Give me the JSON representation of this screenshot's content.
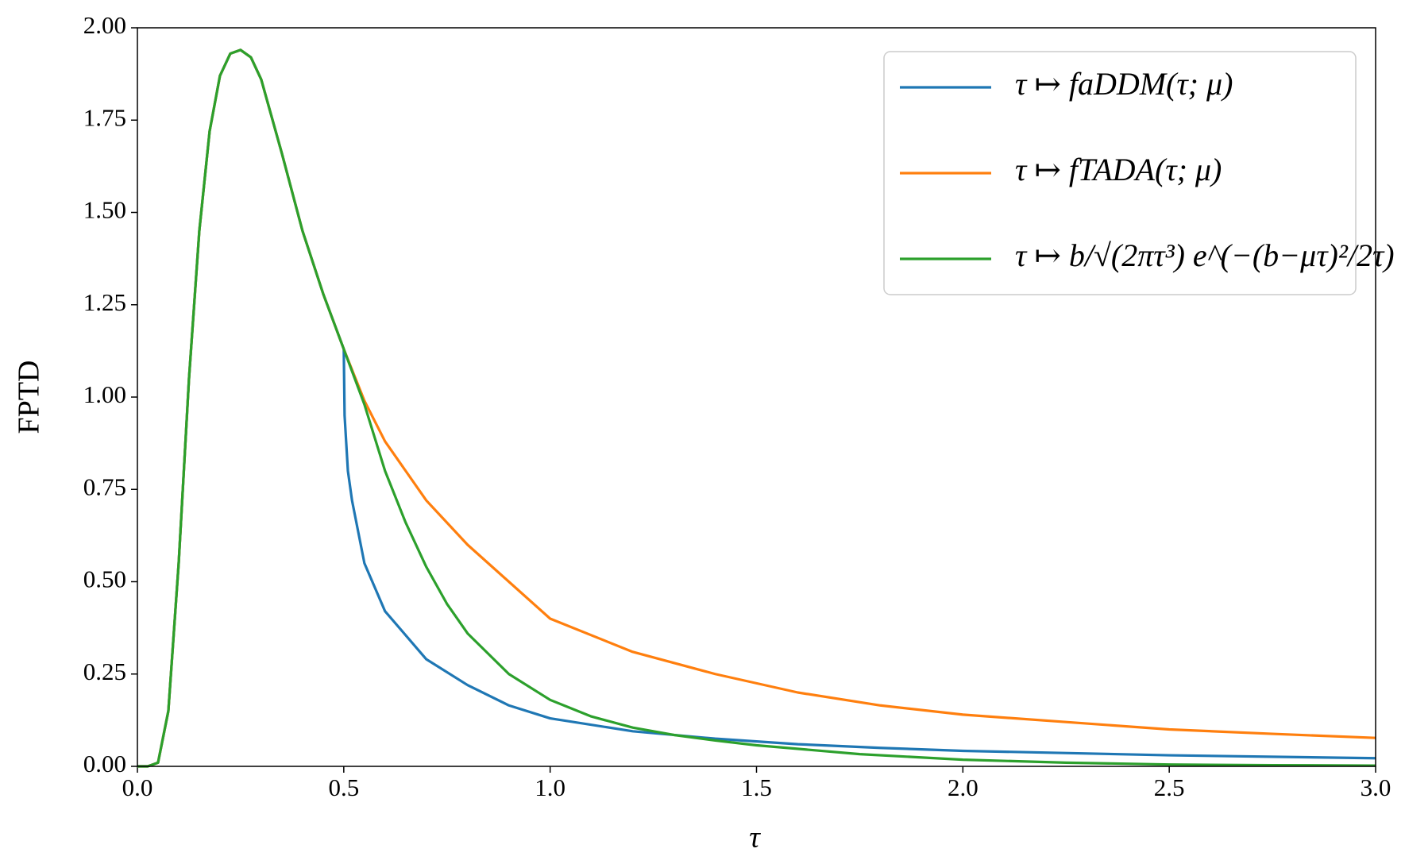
{
  "chart_data": {
    "type": "line",
    "xlabel": "τ",
    "ylabel": "FPTD",
    "xlim": [
      0,
      3
    ],
    "ylim": [
      0,
      2
    ],
    "xticks": [
      {
        "value": 0,
        "label": "0.0"
      },
      {
        "value": 0.5,
        "label": "0.5"
      },
      {
        "value": 1,
        "label": "1.0"
      },
      {
        "value": 1.5,
        "label": "1.5"
      },
      {
        "value": 2,
        "label": "2.0"
      },
      {
        "value": 2.5,
        "label": "2.5"
      },
      {
        "value": 3,
        "label": "3.0"
      }
    ],
    "yticks": [
      {
        "value": 0,
        "label": "0.00"
      },
      {
        "value": 0.25,
        "label": "0.25"
      },
      {
        "value": 0.5,
        "label": "0.50"
      },
      {
        "value": 0.75,
        "label": "0.75"
      },
      {
        "value": 1,
        "label": "1.00"
      },
      {
        "value": 1.25,
        "label": "1.25"
      },
      {
        "value": 1.5,
        "label": "1.50"
      },
      {
        "value": 1.75,
        "label": "1.75"
      },
      {
        "value": 2,
        "label": "2.00"
      }
    ],
    "legend": "upper right",
    "series": [
      {
        "name": "τ ↦ faDDM(τ; μ)",
        "color": "#1f77b4",
        "x": [
          0,
          0.025,
          0.05,
          0.075,
          0.1,
          0.125,
          0.15,
          0.175,
          0.2,
          0.225,
          0.25,
          0.275,
          0.3,
          0.35,
          0.4,
          0.45,
          0.5,
          0.502,
          0.51,
          0.52,
          0.55,
          0.6,
          0.7,
          0.8,
          0.9,
          1.0,
          1.2,
          1.4,
          1.6,
          1.8,
          2.0,
          2.5,
          3.0
        ],
        "values": [
          0,
          0,
          0.01,
          0.15,
          0.55,
          1.05,
          1.45,
          1.72,
          1.87,
          1.93,
          1.94,
          1.92,
          1.86,
          1.66,
          1.45,
          1.28,
          1.13,
          0.95,
          0.8,
          0.72,
          0.55,
          0.42,
          0.29,
          0.22,
          0.165,
          0.13,
          0.095,
          0.075,
          0.06,
          0.05,
          0.042,
          0.03,
          0.022
        ]
      },
      {
        "name": "τ ↦ fTADA(τ; μ)",
        "color": "#ff7f0e",
        "x": [
          0,
          0.025,
          0.05,
          0.075,
          0.1,
          0.125,
          0.15,
          0.175,
          0.2,
          0.225,
          0.25,
          0.275,
          0.3,
          0.35,
          0.4,
          0.45,
          0.5,
          0.55,
          0.6,
          0.7,
          0.8,
          0.9,
          1.0,
          1.2,
          1.4,
          1.6,
          1.8,
          2.0,
          2.25,
          2.5,
          2.75,
          3.0
        ],
        "values": [
          0,
          0,
          0.01,
          0.15,
          0.55,
          1.05,
          1.45,
          1.72,
          1.87,
          1.93,
          1.94,
          1.92,
          1.86,
          1.66,
          1.45,
          1.28,
          1.13,
          0.99,
          0.88,
          0.72,
          0.6,
          0.5,
          0.4,
          0.31,
          0.25,
          0.2,
          0.165,
          0.14,
          0.12,
          0.1,
          0.088,
          0.077
        ]
      },
      {
        "name": "τ ↦ b/√(2πτ³) e^(−(b−μτ)²/2τ)",
        "color": "#2ca02c",
        "x": [
          0,
          0.025,
          0.05,
          0.075,
          0.1,
          0.125,
          0.15,
          0.175,
          0.2,
          0.225,
          0.25,
          0.275,
          0.3,
          0.35,
          0.4,
          0.45,
          0.5,
          0.55,
          0.6,
          0.65,
          0.7,
          0.75,
          0.8,
          0.9,
          1.0,
          1.1,
          1.2,
          1.3,
          1.4,
          1.5,
          1.75,
          2.0,
          2.25,
          2.5,
          2.75,
          3.0
        ],
        "values": [
          0,
          0,
          0.01,
          0.15,
          0.55,
          1.05,
          1.45,
          1.72,
          1.87,
          1.93,
          1.94,
          1.92,
          1.86,
          1.66,
          1.45,
          1.28,
          1.13,
          0.98,
          0.8,
          0.66,
          0.54,
          0.44,
          0.36,
          0.25,
          0.18,
          0.135,
          0.105,
          0.085,
          0.07,
          0.057,
          0.033,
          0.018,
          0.01,
          0.005,
          0.003,
          0.002
        ]
      }
    ]
  }
}
